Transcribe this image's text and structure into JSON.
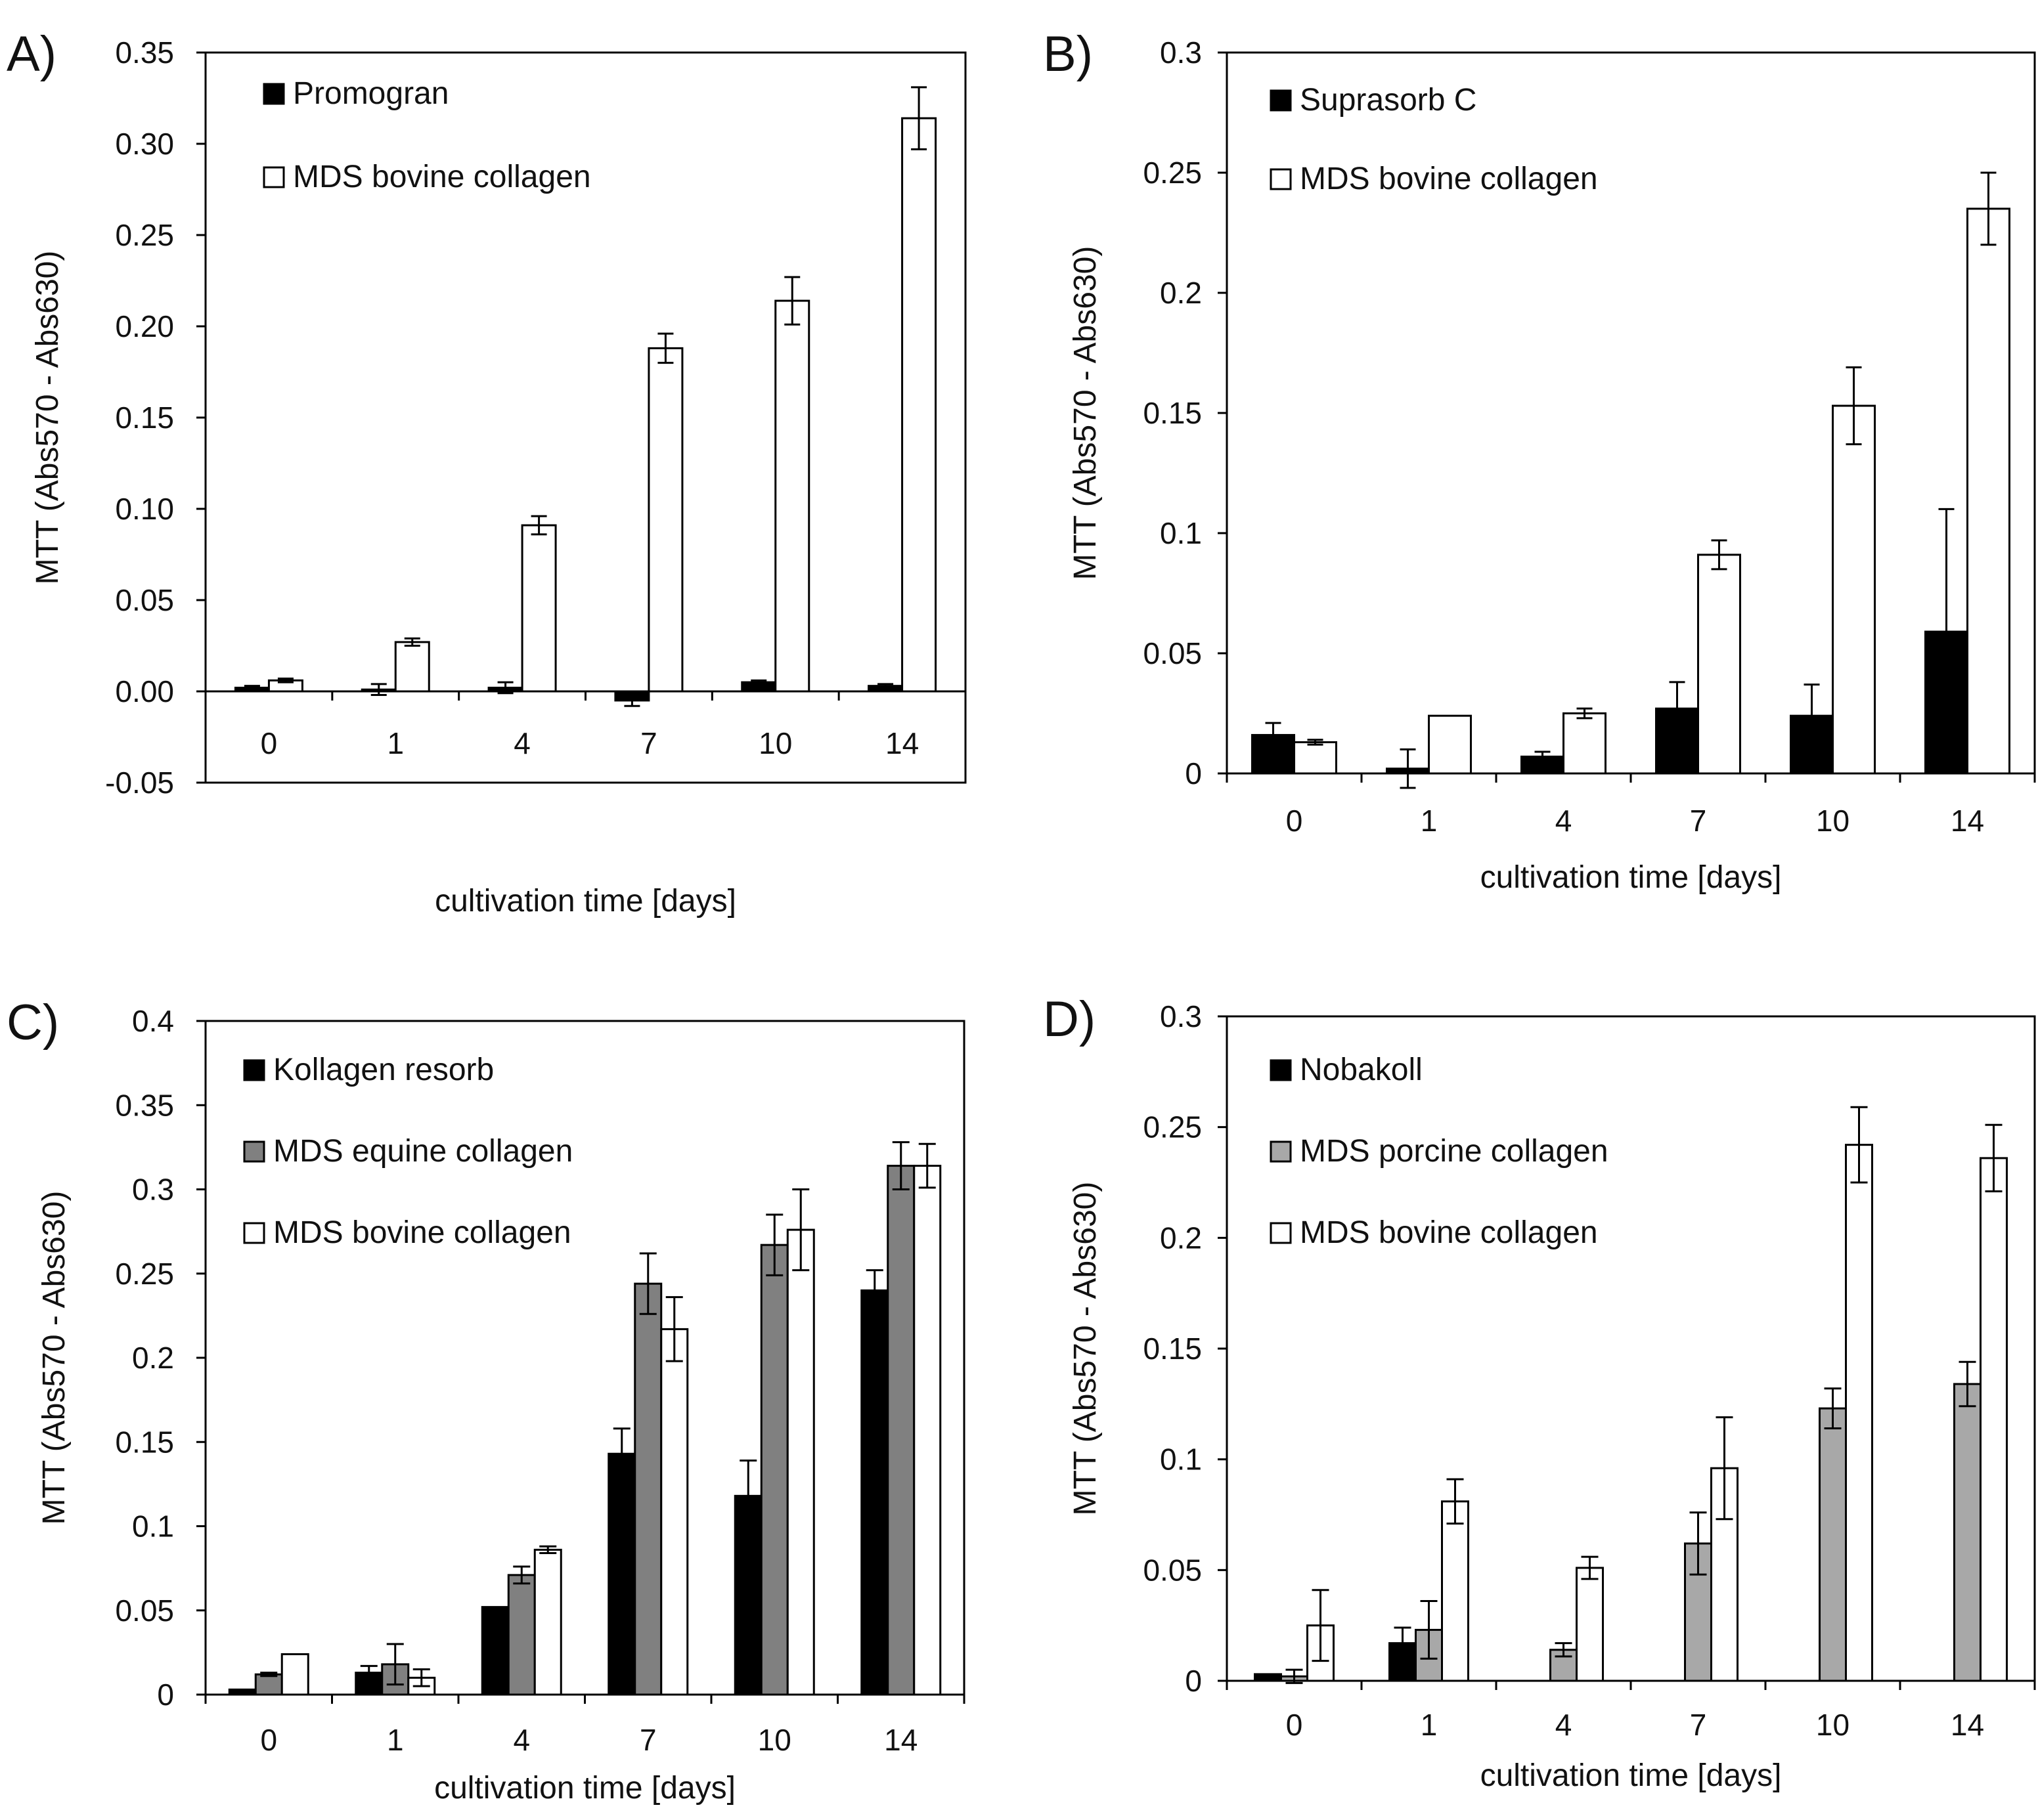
{
  "figure": {
    "panel_count": 4
  },
  "chart_data": [
    {
      "panel": "A)",
      "type": "bar",
      "xlabel": "cultivation time [days]",
      "ylabel": "MTT  (Abs570 - Abs630)",
      "ylim": [
        -0.05,
        0.35
      ],
      "yticks": [
        -0.05,
        0.0,
        0.05,
        0.1,
        0.15,
        0.2,
        0.25,
        0.3,
        0.35
      ],
      "ytick_labels": [
        "-0.05",
        "0.00",
        "0.05",
        "0.10",
        "0.15",
        "0.20",
        "0.25",
        "0.30",
        "0.35"
      ],
      "categories": [
        "0",
        "1",
        "4",
        "7",
        "10",
        "14"
      ],
      "grid": false,
      "legend_position": "top-left",
      "series": [
        {
          "name": "Promogran",
          "color": "#000000",
          "values": [
            0.002,
            0.001,
            0.002,
            -0.005,
            0.005,
            0.003
          ],
          "errors": [
            0.001,
            0.003,
            0.003,
            0.003,
            0.001,
            0.001
          ]
        },
        {
          "name": "MDS bovine collagen",
          "color": "#ffffff",
          "values": [
            0.006,
            0.027,
            0.091,
            0.188,
            0.214,
            0.314
          ],
          "errors": [
            0.001,
            0.002,
            0.005,
            0.008,
            0.013,
            0.017
          ]
        }
      ]
    },
    {
      "panel": "B)",
      "type": "bar",
      "xlabel": "cultivation time [days]",
      "ylabel": "MTT  (Abs570 - Abs630)",
      "ylim": [
        0,
        0.3
      ],
      "yticks": [
        0,
        0.05,
        0.1,
        0.15,
        0.2,
        0.25,
        0.3
      ],
      "ytick_labels": [
        "0",
        "0.05",
        "0.1",
        "0.15",
        "0.2",
        "0.25",
        "0.3"
      ],
      "categories": [
        "0",
        "1",
        "4",
        "7",
        "10",
        "14"
      ],
      "grid": false,
      "legend_position": "top-left",
      "series": [
        {
          "name": "Suprasorb C",
          "color": "#000000",
          "values": [
            0.016,
            0.002,
            0.007,
            0.027,
            0.024,
            0.059
          ],
          "errors": [
            0.005,
            0.008,
            0.002,
            0.011,
            0.013,
            0.051
          ]
        },
        {
          "name": "MDS bovine collagen",
          "color": "#ffffff",
          "values": [
            0.013,
            0.024,
            0.025,
            0.091,
            0.153,
            0.235
          ],
          "errors": [
            0.001,
            0.0,
            0.002,
            0.006,
            0.016,
            0.015
          ]
        }
      ]
    },
    {
      "panel": "C)",
      "type": "bar",
      "xlabel": "cultivation time [days]",
      "ylabel": "MTT  (Abs570 - Abs630)",
      "ylim": [
        0,
        0.4
      ],
      "yticks": [
        0,
        0.05,
        0.1,
        0.15,
        0.2,
        0.25,
        0.3,
        0.35,
        0.4
      ],
      "ytick_labels": [
        "0",
        "0.05",
        "0.1",
        "0.15",
        "0.2",
        "0.25",
        "0.3",
        "0.35",
        "0.4"
      ],
      "categories": [
        "0",
        "1",
        "4",
        "7",
        "10",
        "14"
      ],
      "grid": false,
      "legend_position": "top-left",
      "series": [
        {
          "name": "Kollagen resorb",
          "color": "#000000",
          "values": [
            0.003,
            0.013,
            0.052,
            0.143,
            0.118,
            0.24
          ],
          "errors": [
            0.0,
            0.004,
            0.0,
            0.015,
            0.021,
            0.012
          ]
        },
        {
          "name": "MDS equine collagen",
          "color": "#808080",
          "values": [
            0.012,
            0.018,
            0.071,
            0.244,
            0.267,
            0.314
          ],
          "errors": [
            0.001,
            0.012,
            0.005,
            0.018,
            0.018,
            0.014
          ]
        },
        {
          "name": "MDS bovine collagen",
          "color": "#ffffff",
          "values": [
            0.024,
            0.01,
            0.086,
            0.217,
            0.276,
            0.314
          ],
          "errors": [
            0.0,
            0.005,
            0.002,
            0.019,
            0.024,
            0.013
          ]
        }
      ]
    },
    {
      "panel": "D)",
      "type": "bar",
      "xlabel": "cultivation time [days]",
      "ylabel": "MTT  (Abs570 - Abs630)",
      "ylim": [
        0,
        0.3
      ],
      "yticks": [
        0,
        0.05,
        0.1,
        0.15,
        0.2,
        0.25,
        0.3
      ],
      "ytick_labels": [
        "0",
        "0.05",
        "0.1",
        "0.15",
        "0.2",
        "0.25",
        "0.3"
      ],
      "categories": [
        "0",
        "1",
        "4",
        "7",
        "10",
        "14"
      ],
      "grid": false,
      "legend_position": "top-left",
      "series": [
        {
          "name": "Nobakoll",
          "color": "#000000",
          "values": [
            0.003,
            0.017,
            null,
            null,
            null,
            null
          ],
          "errors": [
            0.0,
            0.007,
            null,
            null,
            null,
            null
          ]
        },
        {
          "name": "MDS porcine collagen",
          "color": "#a8a8a8",
          "values": [
            0.002,
            0.023,
            0.014,
            0.062,
            0.123,
            0.134
          ],
          "errors": [
            0.003,
            0.013,
            0.003,
            0.014,
            0.009,
            0.01
          ]
        },
        {
          "name": "MDS bovine collagen",
          "color": "#ffffff",
          "values": [
            0.025,
            0.081,
            0.051,
            0.096,
            0.242,
            0.236
          ],
          "errors": [
            0.016,
            0.01,
            0.005,
            0.023,
            0.017,
            0.015
          ]
        }
      ]
    }
  ]
}
